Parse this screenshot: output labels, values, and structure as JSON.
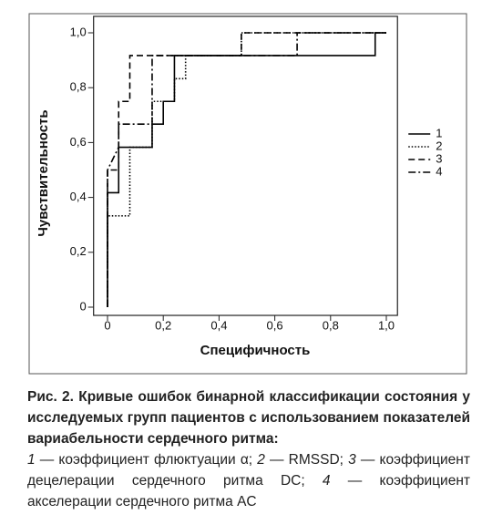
{
  "chart_data": {
    "type": "line",
    "x_label": "Специфичность",
    "y_label": "Чувствительность",
    "xlim": [
      -0.05,
      1.04
    ],
    "ylim": [
      -0.03,
      1.06
    ],
    "xticks": [
      0,
      {
        "value": 0.2,
        "label": "0,2"
      },
      {
        "value": 0.4,
        "label": "0,4"
      },
      {
        "value": 0.6,
        "label": "0,6"
      },
      {
        "value": 0.8,
        "label": "0,8"
      },
      {
        "value": 1,
        "label": "1,0"
      }
    ],
    "yticks": [
      0,
      {
        "value": 0.2,
        "label": "0,2"
      },
      {
        "value": 0.4,
        "label": "0,4"
      },
      {
        "value": 0.6,
        "label": "0,6"
      },
      {
        "value": 0.8,
        "label": "0,8"
      },
      {
        "value": 1,
        "label": "1,0"
      }
    ],
    "legend": "right",
    "series": [
      {
        "name": "1",
        "color": "#000000",
        "dash": "solid",
        "x": [
          0,
          0,
          0.04,
          0.04,
          0.16,
          0.16,
          0.2,
          0.2,
          0.24,
          0.24,
          0.96,
          0.96,
          1
        ],
        "values": [
          0,
          0.417,
          0.417,
          0.583,
          0.583,
          0.667,
          0.667,
          0.75,
          0.75,
          0.917,
          0.917,
          1,
          1
        ]
      },
      {
        "name": "2",
        "color": "#000000",
        "dash": "dotted",
        "x": [
          0,
          0,
          0.08,
          0.08,
          0.16,
          0.16,
          0.24,
          0.24,
          0.28,
          0.28,
          0.48,
          0.48,
          1
        ],
        "values": [
          0,
          0.333,
          0.333,
          0.583,
          0.583,
          0.75,
          0.75,
          0.833,
          0.833,
          0.917,
          0.917,
          1,
          1
        ]
      },
      {
        "name": "3",
        "color": "#000000",
        "dash": "dashed",
        "x": [
          0,
          0,
          0.04,
          0.04,
          0.08,
          0.08,
          0.48,
          0.48,
          1
        ],
        "values": [
          0,
          0.5,
          0.5,
          0.75,
          0.75,
          0.917,
          0.917,
          1,
          1
        ]
      },
      {
        "name": "4",
        "color": "#000000",
        "dash": "dashdot",
        "x": [
          0,
          0,
          0.04,
          0.04,
          0.16,
          0.16,
          0.68,
          0.68,
          1
        ],
        "values": [
          0,
          0.5,
          0.583,
          0.667,
          0.667,
          0.917,
          0.917,
          1,
          1
        ]
      }
    ]
  },
  "caption": {
    "bold": "Рис. 2. Кривые ошибок бинарной классификации состояния у исследуемых групп пациентов с использованием показателей вариабельности сердечного ритма:",
    "items": [
      {
        "num": "1",
        "text": "— коэффициент флюктуации α;"
      },
      {
        "num": "2",
        "text": "— RMSSD;"
      },
      {
        "num": "3",
        "text": "— коэффициент децелерации сердечного ритма DC;"
      },
      {
        "num": "4",
        "text": "— коэффициент акселерации сердечного ритма AC"
      }
    ]
  }
}
